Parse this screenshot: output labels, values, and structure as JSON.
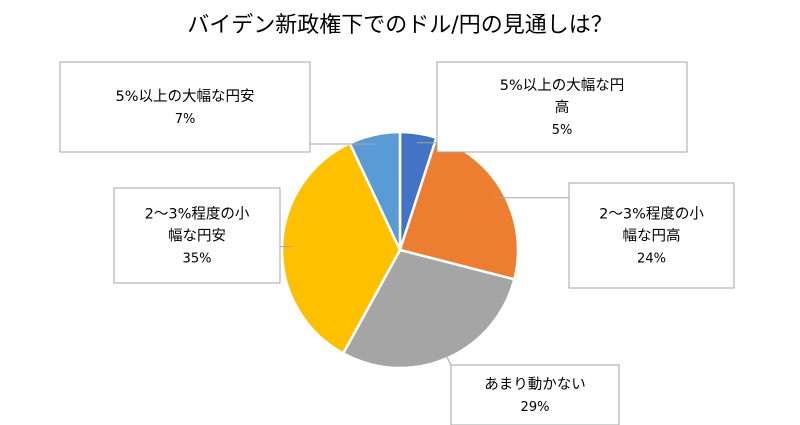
{
  "chart_data": {
    "type": "pie",
    "title": "バイデン新政権下でのドル/円の見通しは？",
    "start_angle_deg": 0,
    "direction": "clockwise",
    "slices": [
      {
        "label_lines": [
          "5%以上の大幅な円",
          "高"
        ],
        "pct_label": "5%",
        "value": 5,
        "color": "#4472C4"
      },
      {
        "label_lines": [
          "2～3%程度の小",
          "幅な円高"
        ],
        "pct_label": "24%",
        "value": 24,
        "color": "#ED7D31"
      },
      {
        "label_lines": [
          "あまり動かない"
        ],
        "pct_label": "29%",
        "value": 29,
        "color": "#A5A5A5"
      },
      {
        "label_lines": [
          "2～3%程度の小",
          "幅な円安"
        ],
        "pct_label": "35%",
        "value": 35,
        "color": "#FFC000"
      },
      {
        "label_lines": [
          "5%以上の大幅な円安"
        ],
        "pct_label": "7%",
        "value": 7,
        "color": "#5B9BD5"
      }
    ]
  }
}
